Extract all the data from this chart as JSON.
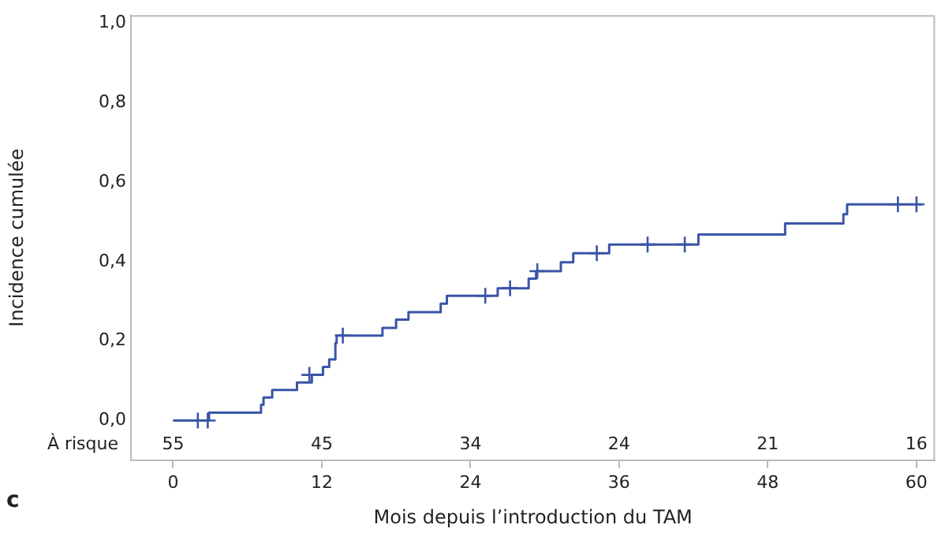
{
  "chart_data": {
    "type": "step",
    "xlabel": "Mois depuis l’introduction du TAM",
    "ylabel": "Incidence cumulée",
    "xlim": [
      -3.4,
      61.5
    ],
    "xticks": [
      0,
      12,
      24,
      36,
      48,
      60
    ],
    "ylim": [
      -0.1,
      1.02
    ],
    "yticks": [
      {
        "value": 0,
        "label": "0,0"
      },
      {
        "value": 0.2,
        "label": "0,2"
      },
      {
        "value": 0.4,
        "label": "0,4"
      },
      {
        "value": 0.6,
        "label": "0,6"
      },
      {
        "value": 0.8,
        "label": "0,8"
      },
      {
        "value": 1,
        "label": "1,0"
      }
    ],
    "grid": false,
    "legend": false,
    "line_style": "solid",
    "series": [
      {
        "color": "#3a55a8",
        "marker": "none",
        "x": [
          0,
          2.9,
          7.1,
          7.3,
          8.0,
          10.0,
          11.2,
          12.1,
          12.6,
          13.1,
          13.2,
          16.9,
          18.0,
          19.0,
          21.6,
          22.1,
          26.2,
          28.7,
          29.3,
          31.3,
          32.3,
          35.2,
          42.4,
          49.4,
          54.1,
          54.4,
          60.4
        ],
        "values": [
          0,
          0.02,
          0.04,
          0.058,
          0.077,
          0.096,
          0.115,
          0.135,
          0.154,
          0.195,
          0.214,
          0.233,
          0.254,
          0.273,
          0.294,
          0.314,
          0.333,
          0.357,
          0.376,
          0.398,
          0.421,
          0.443,
          0.468,
          0.496,
          0.519,
          0.544,
          0.544
        ]
      },
      {
        "type": "scatter",
        "color": "#3a55a8",
        "marker": "cross",
        "x": [
          2.0,
          2.8,
          11.0,
          13.7,
          25.2,
          27.2,
          29.4,
          34.2,
          38.3,
          41.3,
          58.5,
          60.0
        ],
        "values": [
          0,
          0,
          0.115,
          0.214,
          0.314,
          0.333,
          0.376,
          0.421,
          0.443,
          0.443,
          0.544,
          0.544
        ]
      }
    ],
    "annotations": [
      "À risque",
      "c",
      "55",
      "45",
      "34",
      "24",
      "21",
      "16"
    ]
  }
}
